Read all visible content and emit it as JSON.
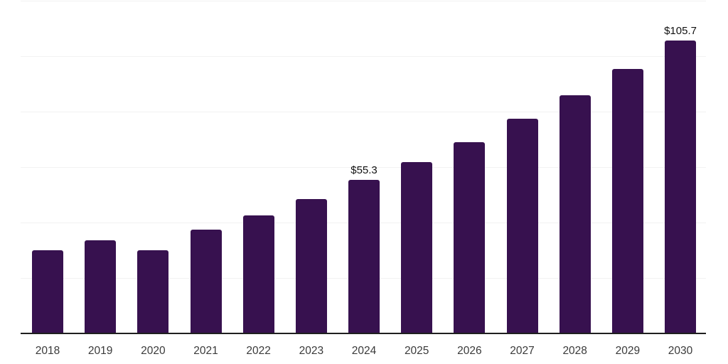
{
  "chart_data": {
    "type": "bar",
    "title": "",
    "xlabel": "",
    "ylabel": "",
    "categories": [
      "2018",
      "2019",
      "2020",
      "2021",
      "2022",
      "2023",
      "2024",
      "2025",
      "2026",
      "2027",
      "2028",
      "2029",
      "2030"
    ],
    "values": [
      29.9,
      33.5,
      30.1,
      37.5,
      42.6,
      48.5,
      55.3,
      61.8,
      69.0,
      77.5,
      86.0,
      95.5,
      105.7
    ],
    "data_labels": [
      "",
      "",
      "",
      "",
      "",
      "",
      "$55.3",
      "",
      "",
      "",
      "",
      "",
      "$105.7"
    ],
    "ylim": [
      0,
      120
    ],
    "gridline_step": 20,
    "grid": true,
    "legend_position": "none",
    "colors": {
      "bar": "#37114F",
      "gridline": "#f2f2f2",
      "axis_line": "#1f1f1f",
      "tick_label": "#3a3a3a",
      "value_label": "#111111",
      "background": "#ffffff"
    }
  }
}
